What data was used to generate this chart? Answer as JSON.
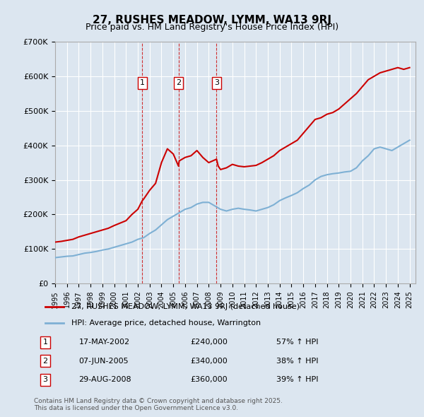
{
  "title": "27, RUSHES MEADOW, LYMM, WA13 9RJ",
  "subtitle": "Price paid vs. HM Land Registry's House Price Index (HPI)",
  "ylabel": "",
  "xlabel": "",
  "ylim": [
    0,
    700000
  ],
  "yticks": [
    0,
    100000,
    200000,
    300000,
    400000,
    500000,
    600000,
    700000
  ],
  "ytick_labels": [
    "£0",
    "£100K",
    "£200K",
    "£300K",
    "£400K",
    "£500K",
    "£600K",
    "£700K"
  ],
  "bg_color": "#dce6f0",
  "plot_bg_color": "#dce6f0",
  "grid_color": "#ffffff",
  "red_color": "#cc0000",
  "blue_color": "#7eb0d4",
  "transactions": [
    {
      "num": 1,
      "date": "17-MAY-2002",
      "price": 240000,
      "pct": "57%",
      "dir": "↑",
      "year": 2002.38
    },
    {
      "num": 2,
      "date": "07-JUN-2005",
      "price": 340000,
      "pct": "38%",
      "dir": "↑",
      "year": 2005.44
    },
    {
      "num": 3,
      "date": "29-AUG-2008",
      "price": 360000,
      "pct": "39%",
      "dir": "↑",
      "year": 2008.66
    }
  ],
  "legend_label_red": "27, RUSHES MEADOW, LYMM, WA13 9RJ (detached house)",
  "legend_label_blue": "HPI: Average price, detached house, Warrington",
  "footer1": "Contains HM Land Registry data © Crown copyright and database right 2025.",
  "footer2": "This data is licensed under the Open Government Licence v3.0.",
  "hpi_years": [
    1995,
    1995.5,
    1996,
    1996.5,
    1997,
    1997.5,
    1998,
    1998.5,
    1999,
    1999.5,
    2000,
    2000.5,
    2001,
    2001.5,
    2002,
    2002.5,
    2003,
    2003.5,
    2004,
    2004.5,
    2005,
    2005.5,
    2006,
    2006.5,
    2007,
    2007.5,
    2008,
    2008.5,
    2009,
    2009.5,
    2010,
    2010.5,
    2011,
    2011.5,
    2012,
    2012.5,
    2013,
    2013.5,
    2014,
    2014.5,
    2015,
    2015.5,
    2016,
    2016.5,
    2017,
    2017.5,
    2018,
    2018.5,
    2019,
    2019.5,
    2020,
    2020.5,
    2021,
    2021.5,
    2022,
    2022.5,
    2023,
    2023.5,
    2024,
    2024.5,
    2025
  ],
  "hpi_values": [
    75000,
    77000,
    79000,
    80000,
    84000,
    88000,
    90000,
    93000,
    97000,
    100000,
    105000,
    110000,
    115000,
    120000,
    128000,
    133000,
    145000,
    155000,
    170000,
    185000,
    195000,
    205000,
    215000,
    220000,
    230000,
    235000,
    235000,
    225000,
    215000,
    210000,
    215000,
    218000,
    215000,
    213000,
    210000,
    215000,
    220000,
    228000,
    240000,
    248000,
    255000,
    263000,
    275000,
    285000,
    300000,
    310000,
    315000,
    318000,
    320000,
    323000,
    325000,
    335000,
    355000,
    370000,
    390000,
    395000,
    390000,
    385000,
    395000,
    405000,
    415000
  ],
  "red_years": [
    1995,
    1995.5,
    1996,
    1996.5,
    1997,
    1997.5,
    1998,
    1998.5,
    1999,
    1999.5,
    2000,
    2000.5,
    2001,
    2001.5,
    2002,
    2002.38,
    2002.5,
    2003,
    2003.5,
    2004,
    2004.5,
    2005,
    2005.44,
    2005.5,
    2006,
    2006.5,
    2007,
    2007.5,
    2008,
    2008.66,
    2008.8,
    2009,
    2009.5,
    2010,
    2010.5,
    2011,
    2011.5,
    2012,
    2012.5,
    2013,
    2013.5,
    2014,
    2014.5,
    2015,
    2015.5,
    2016,
    2016.5,
    2017,
    2017.5,
    2018,
    2018.5,
    2019,
    2019.5,
    2020,
    2020.5,
    2021,
    2021.5,
    2022,
    2022.5,
    2023,
    2023.5,
    2024,
    2024.5,
    2025
  ],
  "red_values": [
    120000,
    122000,
    125000,
    128000,
    135000,
    140000,
    145000,
    150000,
    155000,
    160000,
    168000,
    175000,
    182000,
    200000,
    215000,
    240000,
    245000,
    270000,
    290000,
    350000,
    390000,
    375000,
    340000,
    355000,
    365000,
    370000,
    385000,
    365000,
    350000,
    360000,
    340000,
    330000,
    335000,
    345000,
    340000,
    338000,
    340000,
    342000,
    350000,
    360000,
    370000,
    385000,
    395000,
    405000,
    415000,
    435000,
    455000,
    475000,
    480000,
    490000,
    495000,
    505000,
    520000,
    535000,
    550000,
    570000,
    590000,
    600000,
    610000,
    615000,
    620000,
    625000,
    620000,
    625000
  ]
}
